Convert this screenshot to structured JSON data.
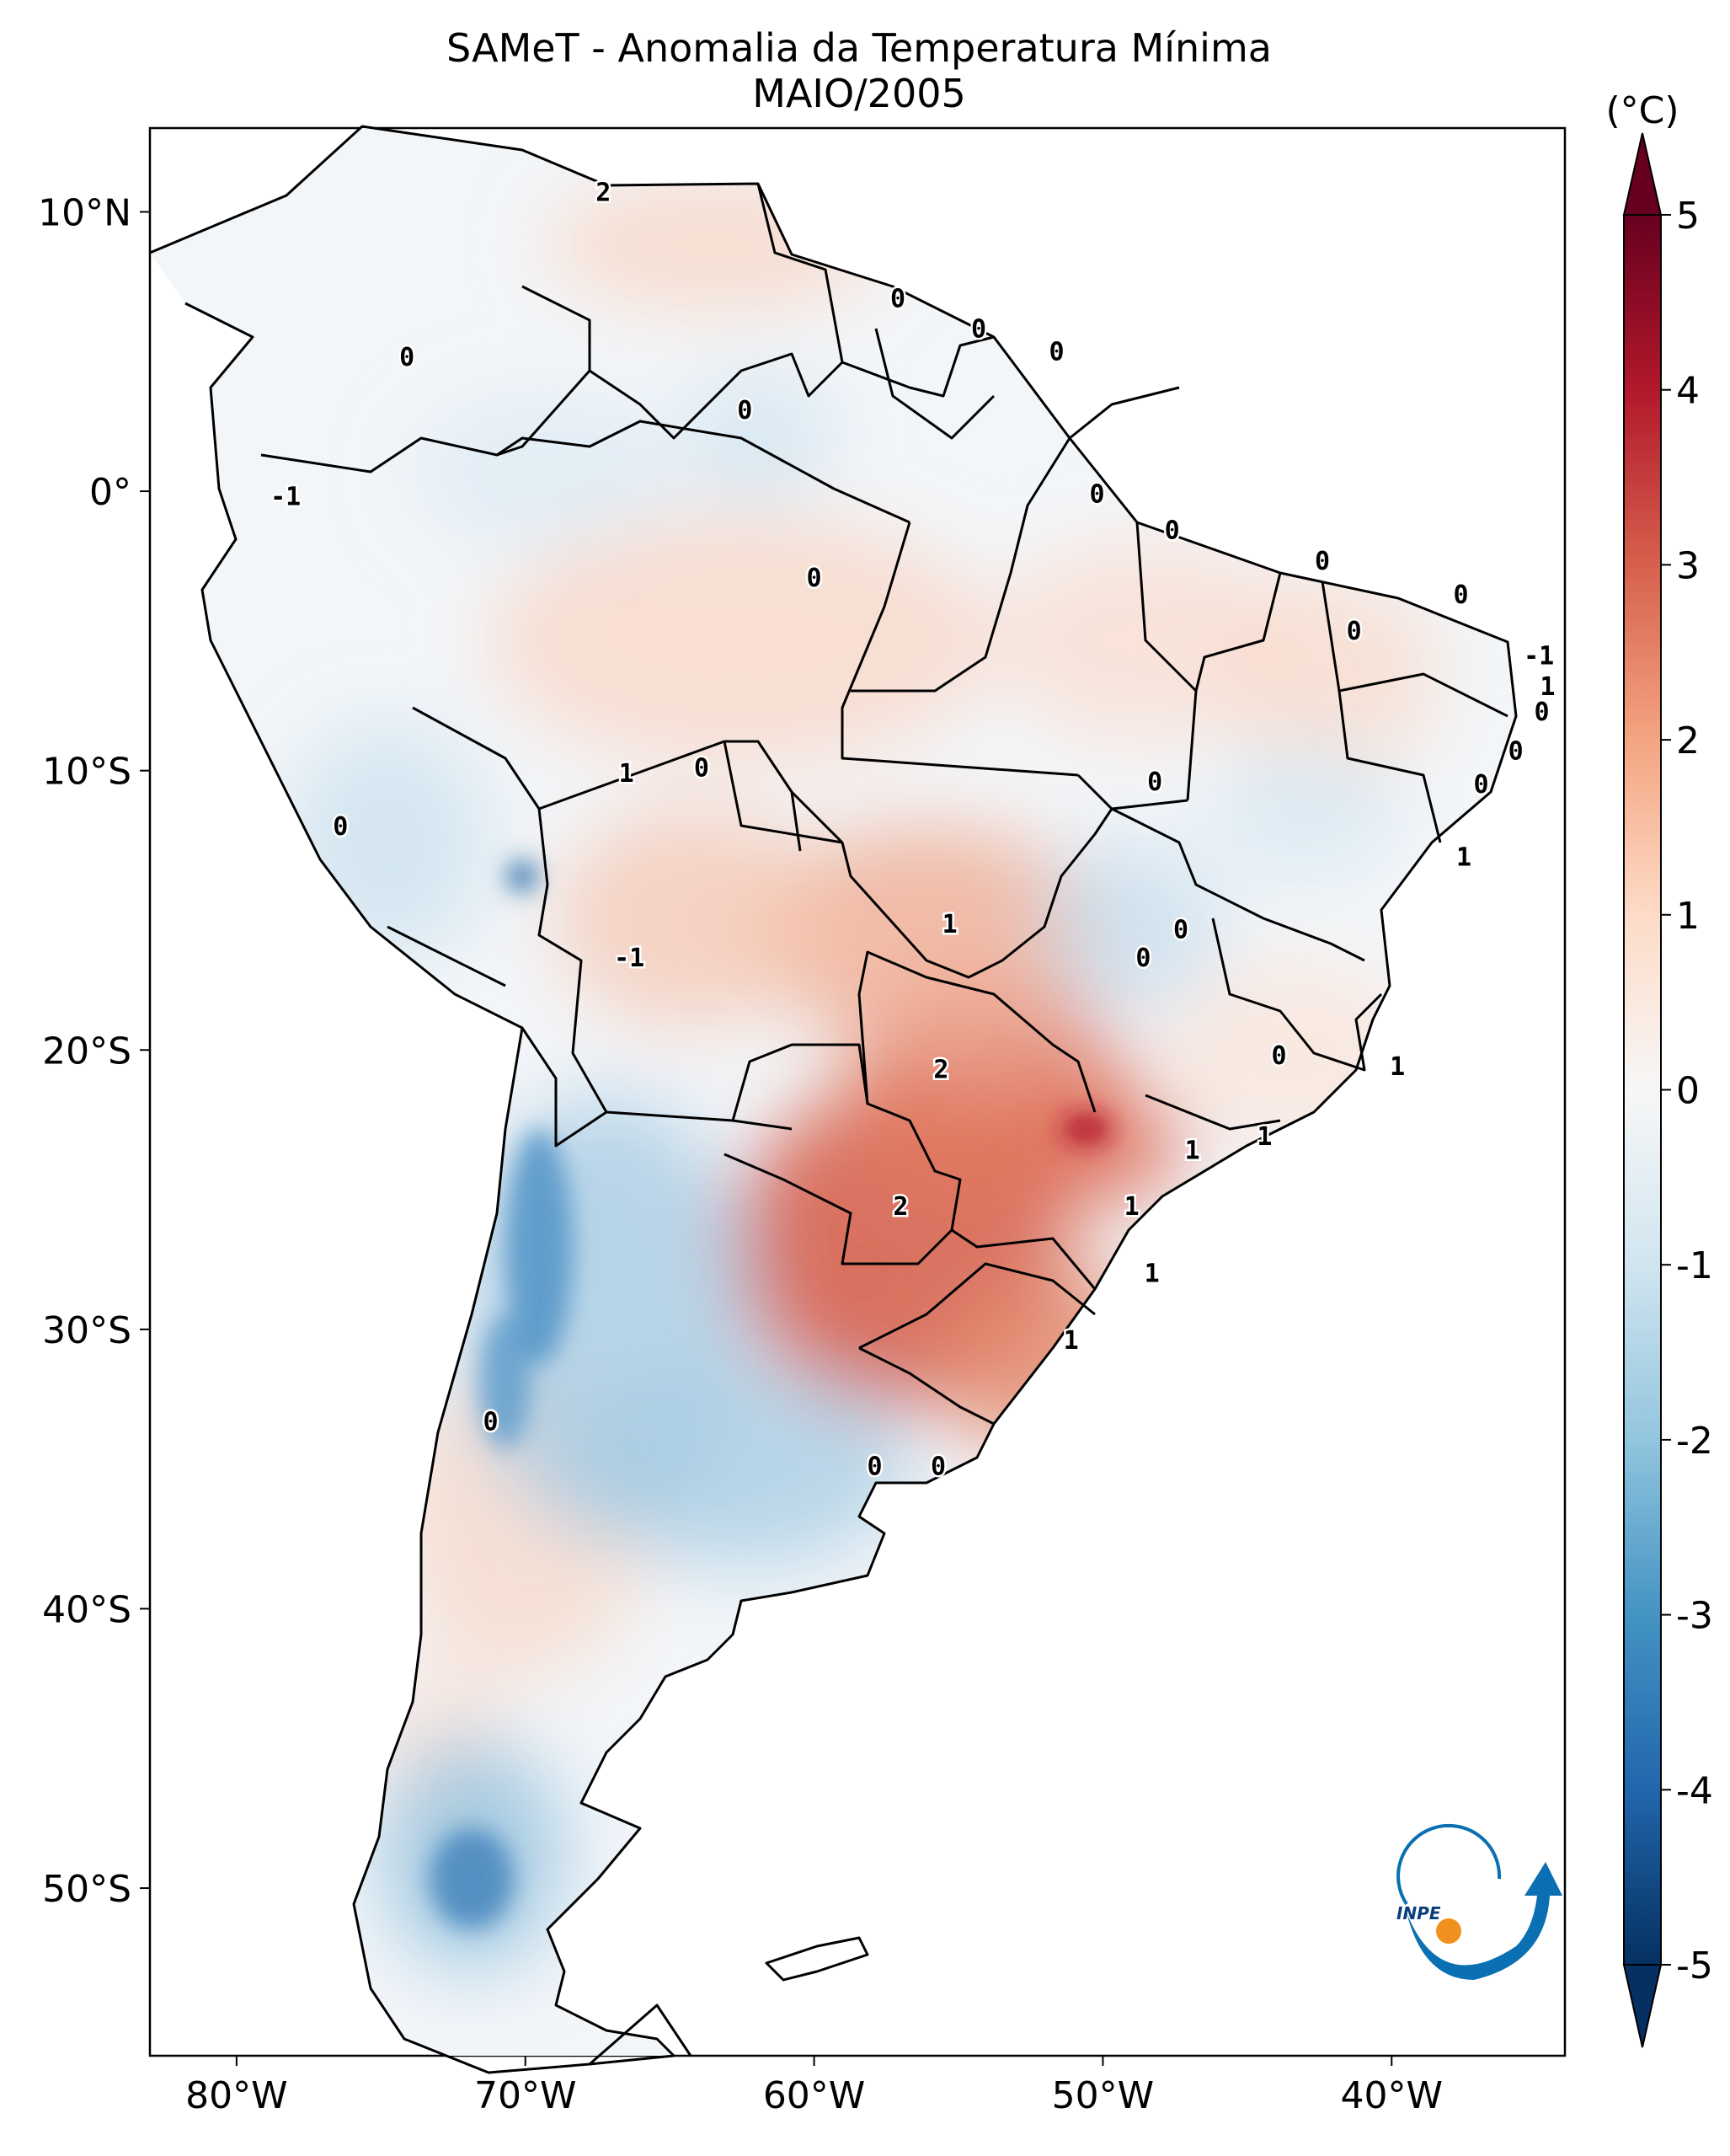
{
  "title": {
    "line1": "SAMeT - Anomalia da Temperatura Mínima",
    "line2": "MAIO/2005"
  },
  "map": {
    "lon_range": [
      -83,
      -34
    ],
    "lat_range": [
      -56,
      13
    ],
    "lon_ticks": [
      {
        "value": -80,
        "label": "80°W"
      },
      {
        "value": -70,
        "label": "70°W"
      },
      {
        "value": -60,
        "label": "60°W"
      },
      {
        "value": -50,
        "label": "50°W"
      },
      {
        "value": -40,
        "label": "40°W"
      }
    ],
    "lat_ticks": [
      {
        "value": 10,
        "label": "10°N"
      },
      {
        "value": 0,
        "label": "0°"
      },
      {
        "value": -10,
        "label": "10°S"
      },
      {
        "value": -20,
        "label": "20°S"
      },
      {
        "value": -30,
        "label": "30°S"
      },
      {
        "value": -40,
        "label": "40°S"
      },
      {
        "value": -50,
        "label": "50°S"
      }
    ],
    "contour_labels": [
      {
        "lon": -67.3,
        "lat": 10.7,
        "text": "2"
      },
      {
        "lon": -74.1,
        "lat": 4.8,
        "text": "0"
      },
      {
        "lon": -62.4,
        "lat": 2.9,
        "text": "0"
      },
      {
        "lon": -57.1,
        "lat": 6.9,
        "text": "0"
      },
      {
        "lon": -54.3,
        "lat": 5.8,
        "text": "0"
      },
      {
        "lon": -51.6,
        "lat": 5.0,
        "text": "0"
      },
      {
        "lon": -78.3,
        "lat": -0.2,
        "text": "-1"
      },
      {
        "lon": -50.2,
        "lat": -0.1,
        "text": "0"
      },
      {
        "lon": -60.0,
        "lat": -3.1,
        "text": "0"
      },
      {
        "lon": -47.6,
        "lat": -1.4,
        "text": "0"
      },
      {
        "lon": -42.4,
        "lat": -2.5,
        "text": "0"
      },
      {
        "lon": -37.6,
        "lat": -3.7,
        "text": "0"
      },
      {
        "lon": -41.3,
        "lat": -5.0,
        "text": "0"
      },
      {
        "lon": -34.9,
        "lat": -5.9,
        "text": "-1"
      },
      {
        "lon": -34.6,
        "lat": -7.0,
        "text": "1"
      },
      {
        "lon": -34.8,
        "lat": -7.9,
        "text": "0"
      },
      {
        "lon": -35.7,
        "lat": -9.3,
        "text": "0"
      },
      {
        "lon": -63.9,
        "lat": -9.9,
        "text": "0"
      },
      {
        "lon": -66.5,
        "lat": -10.1,
        "text": "1"
      },
      {
        "lon": -48.2,
        "lat": -10.4,
        "text": "0"
      },
      {
        "lon": -36.9,
        "lat": -10.5,
        "text": "0"
      },
      {
        "lon": -76.4,
        "lat": -12.0,
        "text": "0"
      },
      {
        "lon": -37.5,
        "lat": -13.1,
        "text": "1"
      },
      {
        "lon": -55.3,
        "lat": -15.5,
        "text": "1"
      },
      {
        "lon": -66.4,
        "lat": -16.7,
        "text": "-1"
      },
      {
        "lon": -47.3,
        "lat": -15.7,
        "text": "0"
      },
      {
        "lon": -48.6,
        "lat": -16.7,
        "text": "0"
      },
      {
        "lon": -43.9,
        "lat": -20.2,
        "text": "0"
      },
      {
        "lon": -55.6,
        "lat": -20.7,
        "text": "2"
      },
      {
        "lon": -39.8,
        "lat": -20.6,
        "text": "1"
      },
      {
        "lon": -44.4,
        "lat": -23.1,
        "text": "1"
      },
      {
        "lon": -46.9,
        "lat": -23.6,
        "text": "1"
      },
      {
        "lon": -57.0,
        "lat": -25.6,
        "text": "2"
      },
      {
        "lon": -49.0,
        "lat": -25.6,
        "text": "1"
      },
      {
        "lon": -48.3,
        "lat": -28.0,
        "text": "1"
      },
      {
        "lon": -71.2,
        "lat": -33.3,
        "text": "0"
      },
      {
        "lon": -51.1,
        "lat": -30.4,
        "text": "1"
      },
      {
        "lon": -57.9,
        "lat": -34.9,
        "text": "0"
      },
      {
        "lon": -55.7,
        "lat": -34.9,
        "text": "0"
      }
    ]
  },
  "colorbar": {
    "unit_label": "(°C)",
    "vmin": -5,
    "vmax": 5,
    "ticks": [
      {
        "value": 5,
        "label": "5"
      },
      {
        "value": 4,
        "label": "4"
      },
      {
        "value": 3,
        "label": "3"
      },
      {
        "value": 2,
        "label": "2"
      },
      {
        "value": 1,
        "label": "1"
      },
      {
        "value": 0,
        "label": "0"
      },
      {
        "value": -1,
        "label": "-1"
      },
      {
        "value": -2,
        "label": "-2"
      },
      {
        "value": -3,
        "label": "-3"
      },
      {
        "value": -4,
        "label": "-4"
      },
      {
        "value": -5,
        "label": "-5"
      }
    ],
    "colormap": [
      "#67001f",
      "#b2182b",
      "#d6604d",
      "#f4a582",
      "#fddbc7",
      "#f7f7f7",
      "#d1e5f0",
      "#92c5de",
      "#4393c3",
      "#2166ac",
      "#053061"
    ]
  },
  "logo": {
    "text": "INPE",
    "colors": {
      "blue": "#0a6fb3",
      "orange": "#f0901e"
    }
  }
}
